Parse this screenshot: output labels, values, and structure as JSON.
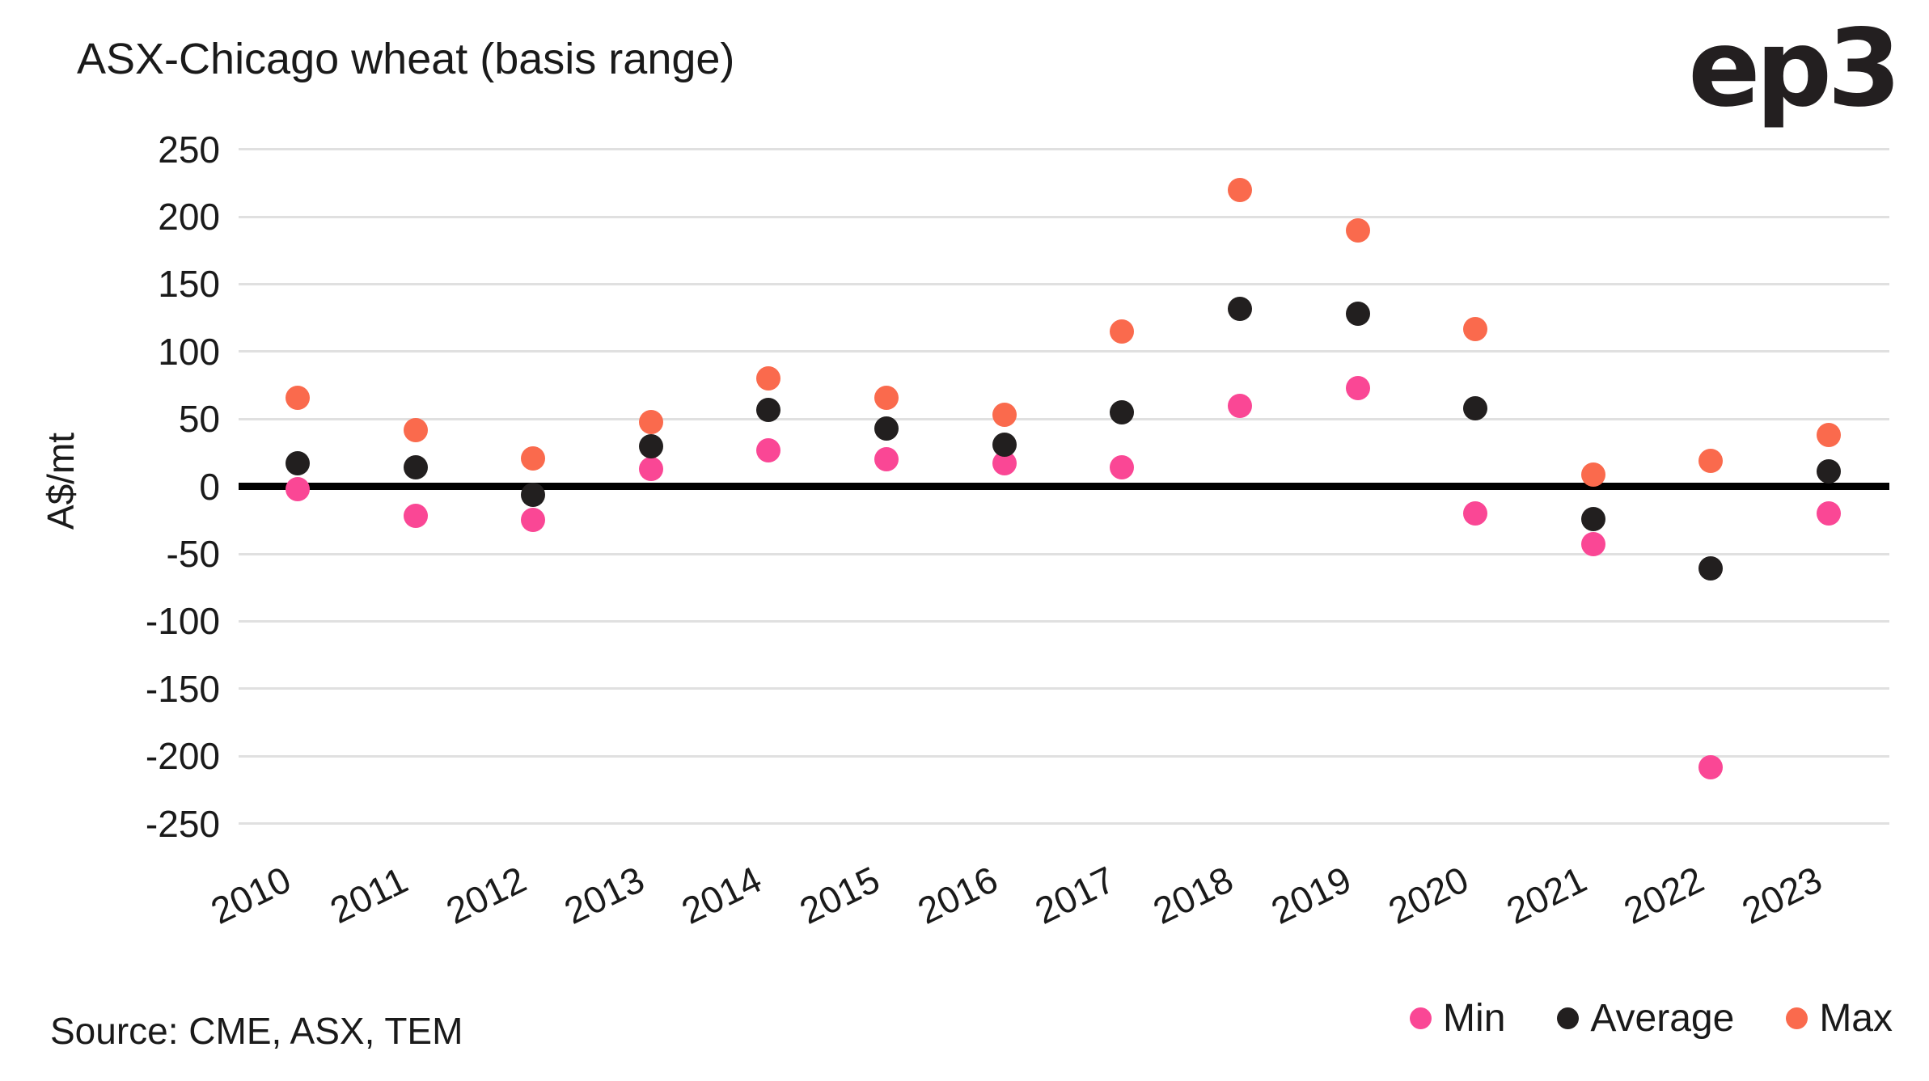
{
  "title": "ASX-Chicago wheat (basis range)",
  "logo_text": "ep3",
  "source_note": "Source: CME, ASX, TEM",
  "colors": {
    "min": "#fa4795",
    "average": "#221f1f",
    "max": "#fa6a4d",
    "gridline": "#e0e0e0",
    "zero_line": "#000000",
    "text": "#1a1a1a"
  },
  "legend": [
    {
      "label": "Min",
      "color": "#fa4795"
    },
    {
      "label": "Average",
      "color": "#221f1f"
    },
    {
      "label": "Max",
      "color": "#fa6a4d"
    }
  ],
  "chart_data": {
    "type": "scatter",
    "title": "ASX-Chicago wheat (basis range)",
    "xlabel": "",
    "ylabel": "A$/mt",
    "ylim": [
      -250,
      250
    ],
    "ytick_step": 50,
    "grid": true,
    "legend_position": "bottom-right",
    "categories": [
      "2010",
      "2011",
      "2012",
      "2013",
      "2014",
      "2015",
      "2016",
      "2017",
      "2018",
      "2019",
      "2020",
      "2021",
      "2022",
      "2023"
    ],
    "series": [
      {
        "name": "Min",
        "color": "#fa4795",
        "values": [
          -2,
          -22,
          -25,
          13,
          27,
          20,
          17,
          14,
          60,
          73,
          -20,
          -43,
          -208,
          -20
        ]
      },
      {
        "name": "Average",
        "color": "#221f1f",
        "values": [
          17,
          14,
          -6,
          30,
          57,
          43,
          31,
          55,
          132,
          128,
          58,
          -24,
          -61,
          11
        ]
      },
      {
        "name": "Max",
        "color": "#fa6a4d",
        "values": [
          66,
          42,
          21,
          48,
          80,
          66,
          53,
          115,
          220,
          190,
          117,
          9,
          19,
          38
        ]
      }
    ]
  }
}
